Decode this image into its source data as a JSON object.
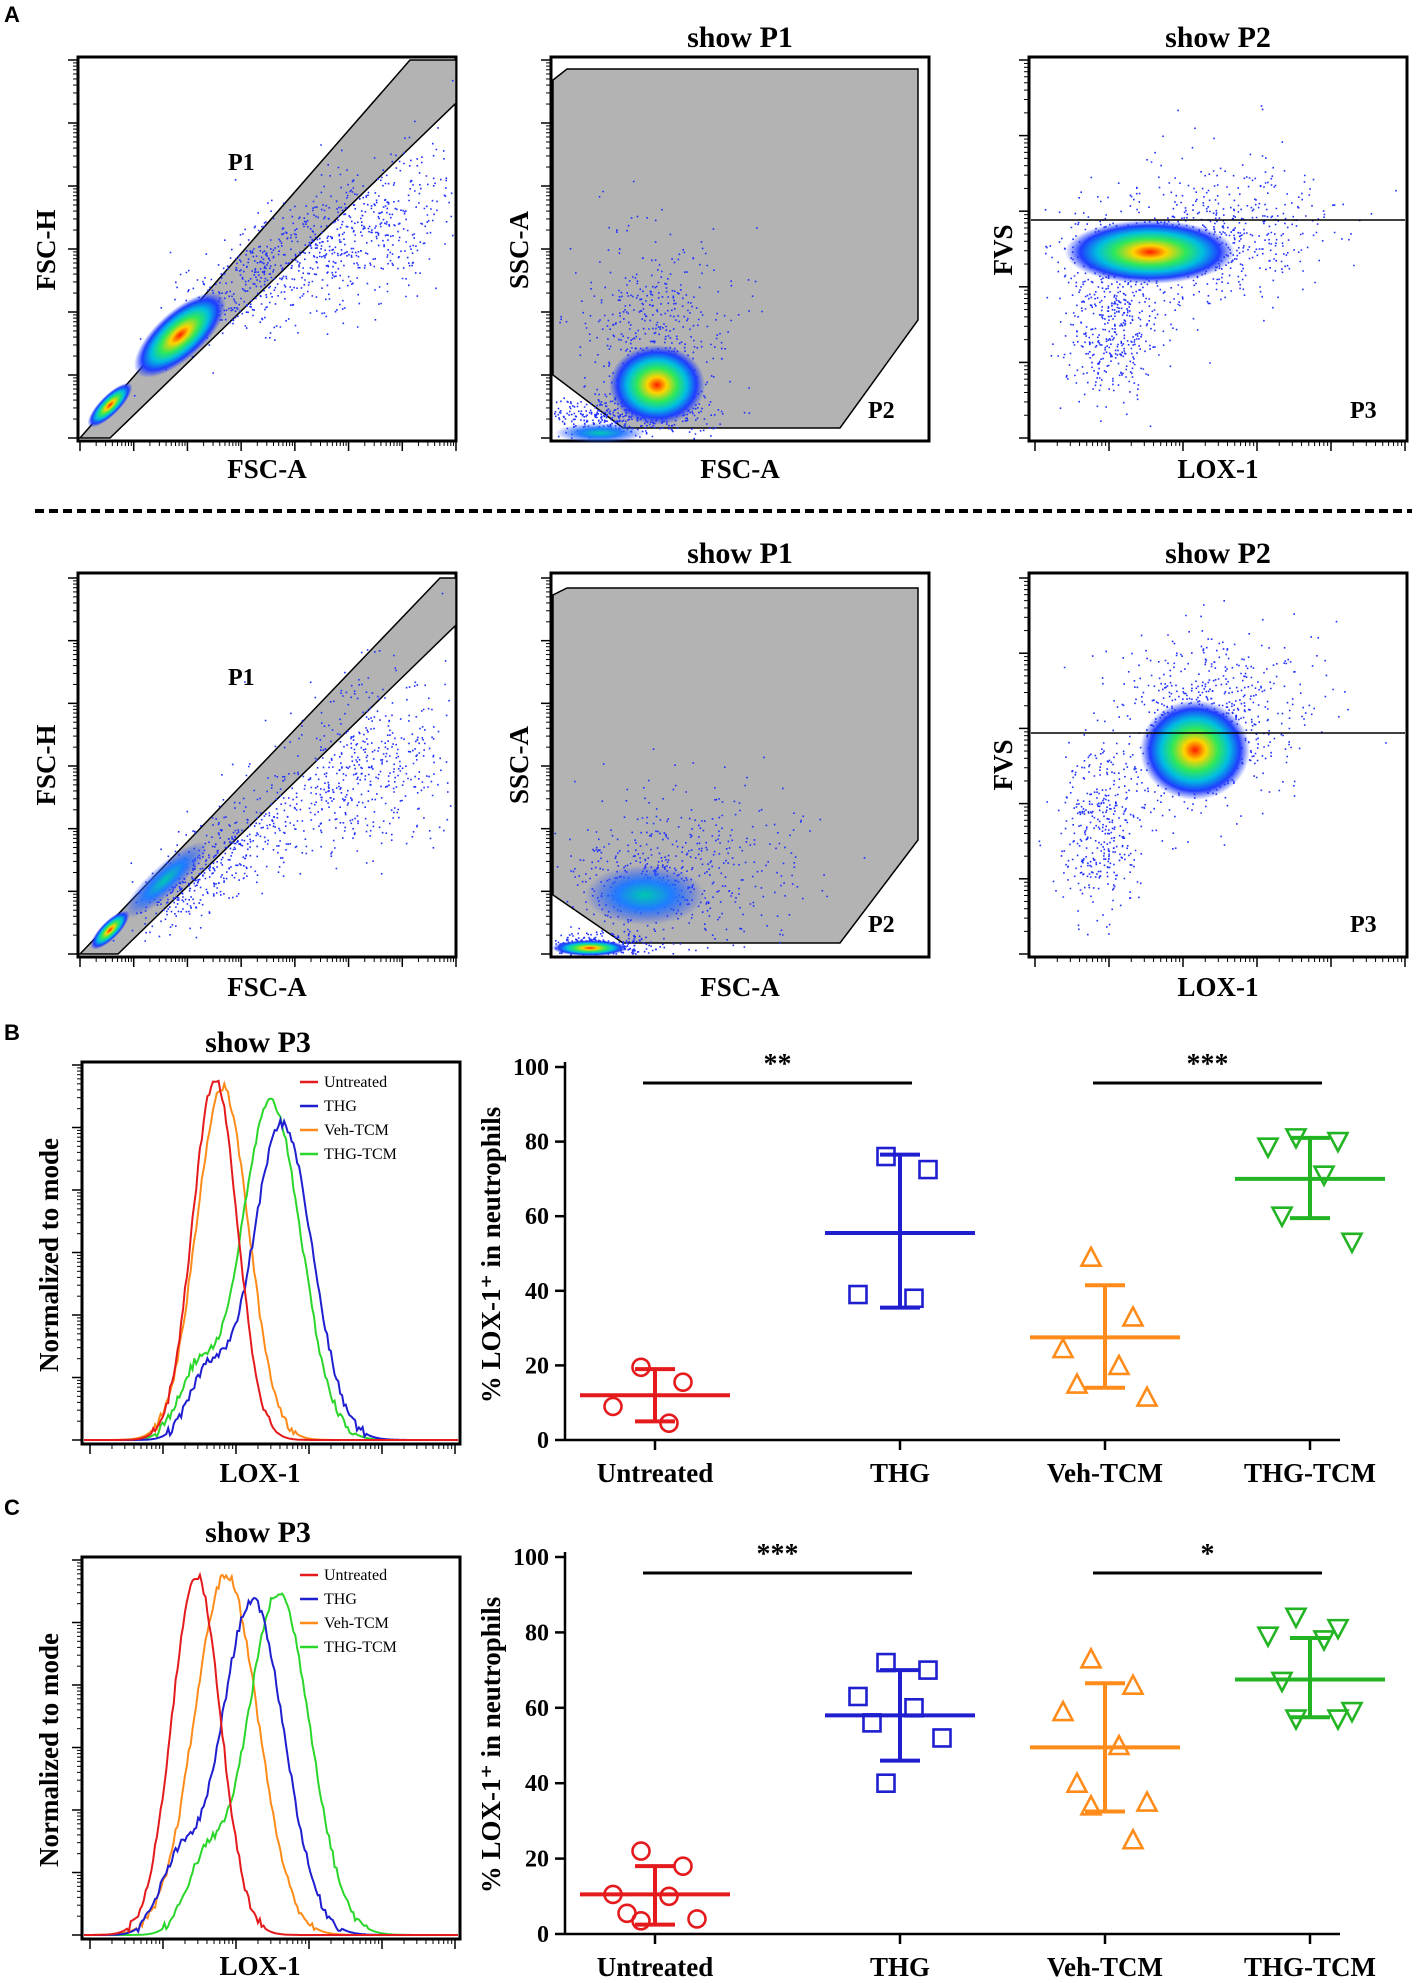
{
  "chart_data": [
    {
      "type": "scatter",
      "id": "A-top-gate1",
      "xlabel": "FSC-A",
      "ylabel": "FSC-H",
      "gate_label": "P1",
      "title": ""
    },
    {
      "type": "scatter",
      "id": "A-top-gate2",
      "title": "show P1",
      "xlabel": "FSC-A",
      "ylabel": "SSC-A",
      "gate_label": "P2"
    },
    {
      "type": "scatter",
      "id": "A-top-gate3",
      "title": "show P2",
      "xlabel": "LOX-1",
      "ylabel": "FVS",
      "gate_label": "P3"
    },
    {
      "type": "scatter",
      "id": "A-bottom-gate1",
      "xlabel": "FSC-A",
      "ylabel": "FSC-H",
      "gate_label": "P1",
      "title": ""
    },
    {
      "type": "scatter",
      "id": "A-bottom-gate2",
      "title": "show P1",
      "xlabel": "FSC-A",
      "ylabel": "SSC-A",
      "gate_label": "P2"
    },
    {
      "type": "scatter",
      "id": "A-bottom-gate3",
      "title": "show P2",
      "xlabel": "LOX-1",
      "ylabel": "FVS",
      "gate_label": "P3"
    },
    {
      "type": "line",
      "id": "B-histogram",
      "title": "show P3",
      "xlabel": "LOX-1",
      "ylabel": "Normalized to mode",
      "legend": [
        {
          "name": "Untreated",
          "color": "#e41a1c"
        },
        {
          "name": "THG",
          "color": "#1f1fd0"
        },
        {
          "name": "Veh-TCM",
          "color": "#ff8c1a"
        },
        {
          "name": "THG-TCM",
          "color": "#2bd62b"
        }
      ],
      "series": [
        {
          "name": "Untreated",
          "peak_x": 0.35,
          "width": 0.06,
          "peak": 1.0
        },
        {
          "name": "Veh-TCM",
          "peak_x": 0.37,
          "width": 0.07,
          "peak": 0.98
        },
        {
          "name": "THG",
          "peak_x": 0.53,
          "width": 0.08,
          "peak": 0.88
        },
        {
          "name": "THG-TCM",
          "peak_x": 0.5,
          "width": 0.08,
          "peak": 0.94
        }
      ]
    },
    {
      "type": "scatter",
      "id": "B-dot",
      "ylabel": "% LOX-1⁺ in neutrophils",
      "ylim": [
        0,
        100
      ],
      "yticks": [
        0,
        20,
        40,
        60,
        80,
        100
      ],
      "categories": [
        "Untreated",
        "THG",
        "Veh-TCM",
        "THG-TCM"
      ],
      "series": [
        {
          "name": "Untreated",
          "color": "#e41a1c",
          "marker": "circle",
          "points": [
            19.5,
            15.5,
            9,
            4.5
          ],
          "mean": 12,
          "sd_low": 5,
          "sd_high": 19
        },
        {
          "name": "THG",
          "color": "#1f1fd0",
          "marker": "square",
          "points": [
            76,
            72.5,
            39,
            38
          ],
          "mean": 55.5,
          "sd_low": 35.5,
          "sd_high": 76.5
        },
        {
          "name": "Veh-TCM",
          "color": "#ff8c1a",
          "marker": "triangle-up",
          "points": [
            49,
            33,
            24.5,
            20,
            15,
            11.5
          ],
          "mean": 27.5,
          "sd_low": 14,
          "sd_high": 41.5
        },
        {
          "name": "THG-TCM",
          "color": "#22b422",
          "marker": "triangle-down",
          "points": [
            81,
            80,
            78.5,
            71,
            60,
            53
          ],
          "mean": 70,
          "sd_low": 59.5,
          "sd_high": 81
        }
      ],
      "significance": [
        {
          "from": "Untreated",
          "to": "THG",
          "label": "**"
        },
        {
          "from": "Veh-TCM",
          "to": "THG-TCM",
          "label": "***"
        }
      ]
    },
    {
      "type": "line",
      "id": "C-histogram",
      "title": "show P3",
      "xlabel": "LOX-1",
      "ylabel": "Normalized to mode",
      "legend": [
        {
          "name": "Untreated",
          "color": "#e41a1c"
        },
        {
          "name": "THG",
          "color": "#1f1fd0"
        },
        {
          "name": "Veh-TCM",
          "color": "#ff8c1a"
        },
        {
          "name": "THG-TCM",
          "color": "#2bd62b"
        }
      ],
      "series": [
        {
          "name": "Untreated",
          "peak_x": 0.3,
          "width": 0.065,
          "peak": 1.0
        },
        {
          "name": "Veh-TCM",
          "peak_x": 0.38,
          "width": 0.085,
          "peak": 1.0
        },
        {
          "name": "THG",
          "peak_x": 0.45,
          "width": 0.085,
          "peak": 0.93
        },
        {
          "name": "THG-TCM",
          "peak_x": 0.52,
          "width": 0.085,
          "peak": 0.95
        }
      ]
    },
    {
      "type": "scatter",
      "id": "C-dot",
      "ylabel": "% LOX-1⁺ in neutrophils",
      "ylim": [
        0,
        100
      ],
      "yticks": [
        0,
        20,
        40,
        60,
        80,
        100
      ],
      "categories": [
        "Untreated",
        "THG",
        "Veh-TCM",
        "THG-TCM"
      ],
      "series": [
        {
          "name": "Untreated",
          "color": "#e41a1c",
          "marker": "circle",
          "points": [
            22,
            18,
            10.5,
            10,
            5.5,
            4,
            3.5
          ],
          "mean": 10.5,
          "sd_low": 2.5,
          "sd_high": 18
        },
        {
          "name": "THG",
          "color": "#1f1fd0",
          "marker": "square",
          "points": [
            72,
            70,
            63,
            60,
            56,
            52,
            40
          ],
          "mean": 58,
          "sd_low": 46,
          "sd_high": 70
        },
        {
          "name": "Veh-TCM",
          "color": "#ff8c1a",
          "marker": "triangle-up",
          "points": [
            73,
            66,
            59,
            50,
            40,
            35,
            34,
            25
          ],
          "mean": 49.5,
          "sd_low": 32.5,
          "sd_high": 66.5
        },
        {
          "name": "THG-TCM",
          "color": "#22b422",
          "marker": "triangle-down",
          "points": [
            84,
            81,
            79,
            78,
            67,
            59,
            57,
            57
          ],
          "mean": 67.5,
          "sd_low": 57.5,
          "sd_high": 78.5
        }
      ],
      "significance": [
        {
          "from": "Untreated",
          "to": "THG",
          "label": "***"
        },
        {
          "from": "Veh-TCM",
          "to": "THG-TCM",
          "label": "*"
        }
      ]
    }
  ],
  "panel_letters": [
    "A",
    "B",
    "C"
  ]
}
